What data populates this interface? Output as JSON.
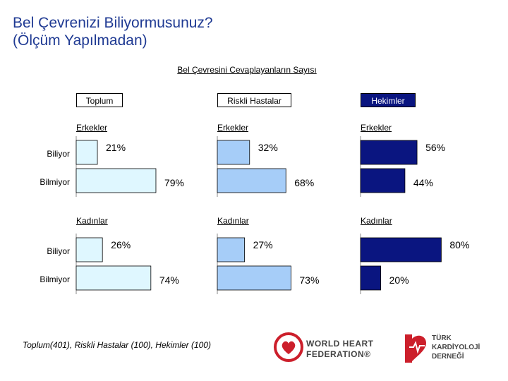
{
  "page": {
    "title_line1": "Bel Çevrenizi Biliyormusunuz?",
    "title_line2": "(Ölçüm Yapılmadan)",
    "subtitle": "Bel Çevresini Cevaplayanların Sayısı",
    "footnote": "Toplum(401), Riskli Hastalar (100), Hekimler (100)"
  },
  "row_labels": {
    "biliyor": "Biliyor",
    "bilmiyor": "Bilmiyor"
  },
  "logos": {
    "whf_line1": "WORLD HEART",
    "whf_line2": "FEDERATION®",
    "tkd_line1": "TÜRK",
    "tkd_line2": "KARDİYOLOJİ",
    "tkd_line3": "DERNEĞİ"
  },
  "colors": {
    "title": "#1f3a93",
    "toplum": "#dff7ff",
    "riskli": "#a6cdf8",
    "hekimler": "#0a1580",
    "hekimler_header_bg": "#0a1580",
    "logo_red": "#cc1f2b"
  },
  "chart_data": {
    "type": "bar",
    "orientation": "horizontal",
    "title": "Bel Çevresini Cevaplayanların Sayısı",
    "unit": "%",
    "xlim": [
      0,
      100
    ],
    "categories": [
      "Biliyor",
      "Bilmiyor"
    ],
    "groups": [
      {
        "name": "Toplum",
        "color_key": "toplum",
        "subgroups": [
          {
            "label": "Erkekler",
            "values": [
              21,
              79
            ],
            "value_labels": [
              "21%",
              "79%"
            ]
          },
          {
            "label": "Kadınlar",
            "values": [
              26,
              74
            ],
            "value_labels": [
              "26%",
              "74%"
            ]
          }
        ]
      },
      {
        "name": "Riskli Hastalar",
        "color_key": "riskli",
        "subgroups": [
          {
            "label": "Erkekler",
            "values": [
              32,
              68
            ],
            "value_labels": [
              "32%",
              "68%"
            ]
          },
          {
            "label": "Kadınlar",
            "values": [
              27,
              73
            ],
            "value_labels": [
              "27%",
              "73%"
            ]
          }
        ]
      },
      {
        "name": "Hekimler",
        "color_key": "hekimler",
        "subgroups": [
          {
            "label": "Erkekler",
            "values": [
              56,
              44
            ],
            "value_labels": [
              "56%",
              "44%"
            ]
          },
          {
            "label": "Kadınlar",
            "values": [
              80,
              20
            ],
            "value_labels": [
              "80%",
              "20%"
            ]
          }
        ]
      }
    ]
  }
}
